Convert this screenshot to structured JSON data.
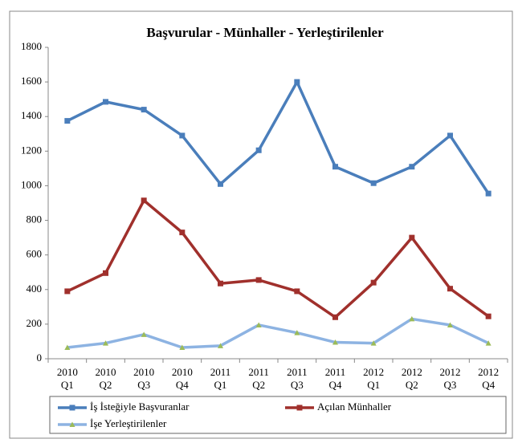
{
  "chart_data": {
    "type": "line",
    "title": "Başvurular - Münhaller - Yerleştirilenler",
    "categories": [
      [
        "2010",
        "Q1"
      ],
      [
        "2010",
        "Q2"
      ],
      [
        "2010",
        "Q3"
      ],
      [
        "2010",
        "Q4"
      ],
      [
        "2011",
        "Q1"
      ],
      [
        "2011",
        "Q2"
      ],
      [
        "2011",
        "Q3"
      ],
      [
        "2011",
        "Q4"
      ],
      [
        "2012",
        "Q1"
      ],
      [
        "2012",
        "Q2"
      ],
      [
        "2012",
        "Q3"
      ],
      [
        "2012",
        "Q4"
      ]
    ],
    "series": [
      {
        "name": "İş İsteğiyle Başvuranlar",
        "color": "#4a7ebb",
        "marker": "square",
        "values": [
          1375,
          1485,
          1440,
          1290,
          1010,
          1205,
          1600,
          1110,
          1015,
          1110,
          1290,
          955
        ]
      },
      {
        "name": "Açılan Münhaller",
        "color": "#a0302c",
        "marker": "square",
        "values": [
          390,
          495,
          915,
          730,
          435,
          455,
          390,
          240,
          440,
          700,
          405,
          245
        ]
      },
      {
        "name": "İşe Yerleştirilenler",
        "color": "#8db3e2",
        "marker": "triangle",
        "values": [
          65,
          90,
          140,
          65,
          75,
          195,
          150,
          95,
          90,
          230,
          195,
          90
        ]
      }
    ],
    "ylim": [
      0,
      1800
    ],
    "yticks": [
      0,
      200,
      400,
      600,
      800,
      1000,
      1200,
      1400,
      1600,
      1800
    ],
    "grid": false,
    "legend": "bottom"
  }
}
